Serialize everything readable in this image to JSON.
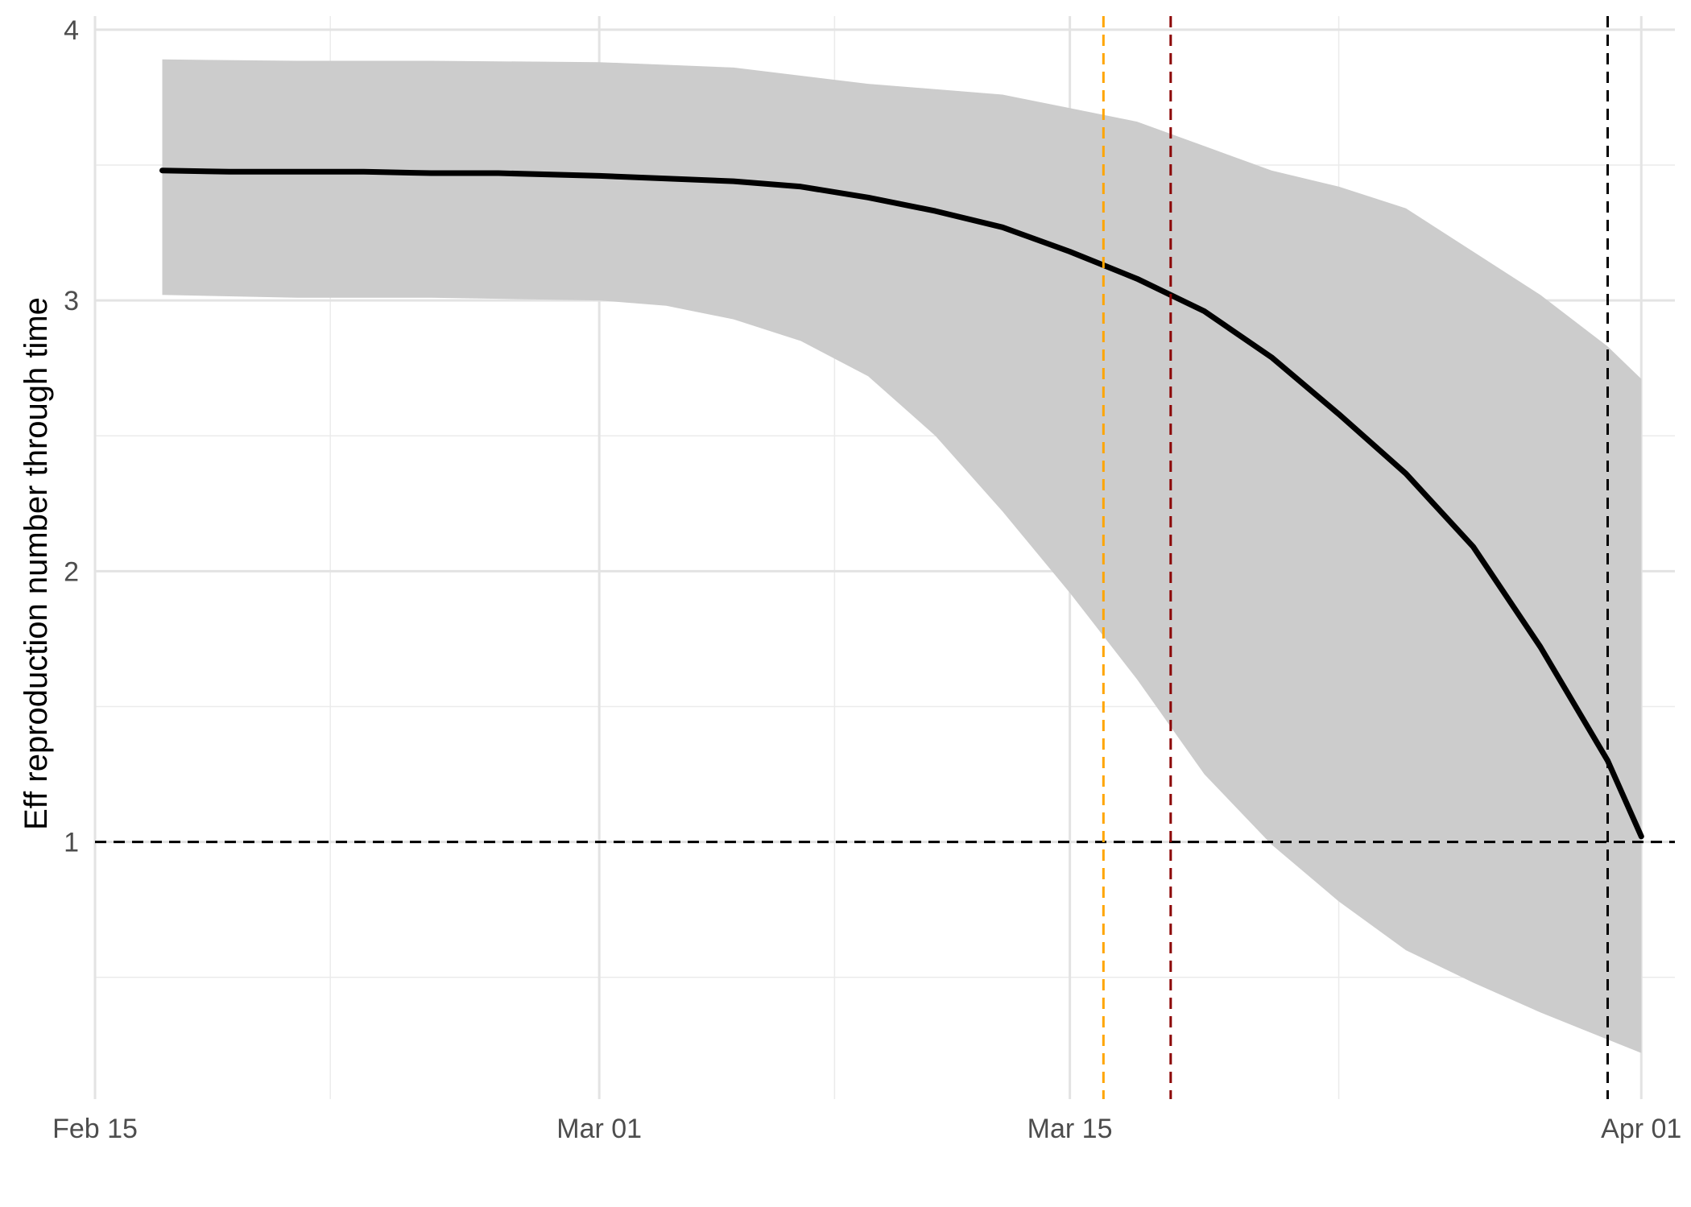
{
  "chart_data": {
    "type": "line",
    "title": "",
    "xlabel": "",
    "ylabel": "Eff reproduction number through time",
    "x_axis": {
      "type": "date",
      "range": [
        "2020-02-15",
        "2020-04-02"
      ],
      "ticks": [
        {
          "date": "2020-02-15",
          "label": "Feb 15"
        },
        {
          "date": "2020-03-01",
          "label": "Mar 01"
        },
        {
          "date": "2020-03-15",
          "label": "Mar 15"
        },
        {
          "date": "2020-04-01",
          "label": "Apr 01"
        }
      ],
      "minor_grid": [
        "2020-02-22",
        "2020-03-08",
        "2020-03-23"
      ]
    },
    "y_axis": {
      "range": [
        0.05,
        4.05
      ],
      "ticks": [
        1,
        2,
        3,
        4
      ],
      "minor_grid": [
        0.5,
        1.5,
        2.5,
        3.5
      ]
    },
    "grid": true,
    "series": [
      {
        "kind": "line",
        "color": "#000000",
        "points": [
          [
            "2020-02-17",
            3.48
          ],
          [
            "2020-02-19",
            3.475
          ],
          [
            "2020-02-21",
            3.475
          ],
          [
            "2020-02-23",
            3.475
          ],
          [
            "2020-02-25",
            3.47
          ],
          [
            "2020-02-27",
            3.47
          ],
          [
            "2020-03-01",
            3.46
          ],
          [
            "2020-03-03",
            3.45
          ],
          [
            "2020-03-05",
            3.44
          ],
          [
            "2020-03-07",
            3.42
          ],
          [
            "2020-03-09",
            3.38
          ],
          [
            "2020-03-11",
            3.33
          ],
          [
            "2020-03-13",
            3.27
          ],
          [
            "2020-03-15",
            3.18
          ],
          [
            "2020-03-17",
            3.08
          ],
          [
            "2020-03-19",
            2.96
          ],
          [
            "2020-03-21",
            2.79
          ],
          [
            "2020-03-23",
            2.58
          ],
          [
            "2020-03-25",
            2.36
          ],
          [
            "2020-03-27",
            2.09
          ],
          [
            "2020-03-29",
            1.72
          ],
          [
            "2020-03-31",
            1.3
          ],
          [
            "2020-04-01",
            1.02
          ]
        ]
      },
      {
        "kind": "ribbon",
        "color": "#cccccc",
        "upper": [
          [
            "2020-02-17",
            3.89
          ],
          [
            "2020-02-21",
            3.885
          ],
          [
            "2020-02-25",
            3.885
          ],
          [
            "2020-03-01",
            3.88
          ],
          [
            "2020-03-05",
            3.86
          ],
          [
            "2020-03-09",
            3.8
          ],
          [
            "2020-03-13",
            3.76
          ],
          [
            "2020-03-15",
            3.71
          ],
          [
            "2020-03-17",
            3.66
          ],
          [
            "2020-03-19",
            3.57
          ],
          [
            "2020-03-21",
            3.48
          ],
          [
            "2020-03-23",
            3.42
          ],
          [
            "2020-03-25",
            3.34
          ],
          [
            "2020-03-27",
            3.18
          ],
          [
            "2020-03-29",
            3.02
          ],
          [
            "2020-03-31",
            2.83
          ],
          [
            "2020-04-01",
            2.71
          ]
        ],
        "lower": [
          [
            "2020-02-17",
            3.02
          ],
          [
            "2020-02-21",
            3.01
          ],
          [
            "2020-02-25",
            3.01
          ],
          [
            "2020-03-01",
            3.0
          ],
          [
            "2020-03-03",
            2.98
          ],
          [
            "2020-03-05",
            2.93
          ],
          [
            "2020-03-07",
            2.85
          ],
          [
            "2020-03-09",
            2.72
          ],
          [
            "2020-03-11",
            2.5
          ],
          [
            "2020-03-13",
            2.22
          ],
          [
            "2020-03-15",
            1.92
          ],
          [
            "2020-03-17",
            1.6
          ],
          [
            "2020-03-19",
            1.25
          ],
          [
            "2020-03-21",
            0.99
          ],
          [
            "2020-03-23",
            0.78
          ],
          [
            "2020-03-25",
            0.6
          ],
          [
            "2020-03-27",
            0.48
          ],
          [
            "2020-03-29",
            0.37
          ],
          [
            "2020-03-31",
            0.27
          ],
          [
            "2020-04-01",
            0.22
          ]
        ]
      }
    ],
    "reference_lines": [
      {
        "axis": "y",
        "value": 1,
        "color": "#000000",
        "style": "dashed"
      },
      {
        "axis": "x",
        "value": "2020-03-16",
        "color": "#FFA500",
        "style": "dashed"
      },
      {
        "axis": "x",
        "value": "2020-03-18",
        "color": "#8B0000",
        "style": "dashed"
      },
      {
        "axis": "x",
        "value": "2020-03-31",
        "color": "#000000",
        "style": "dashed"
      }
    ]
  }
}
